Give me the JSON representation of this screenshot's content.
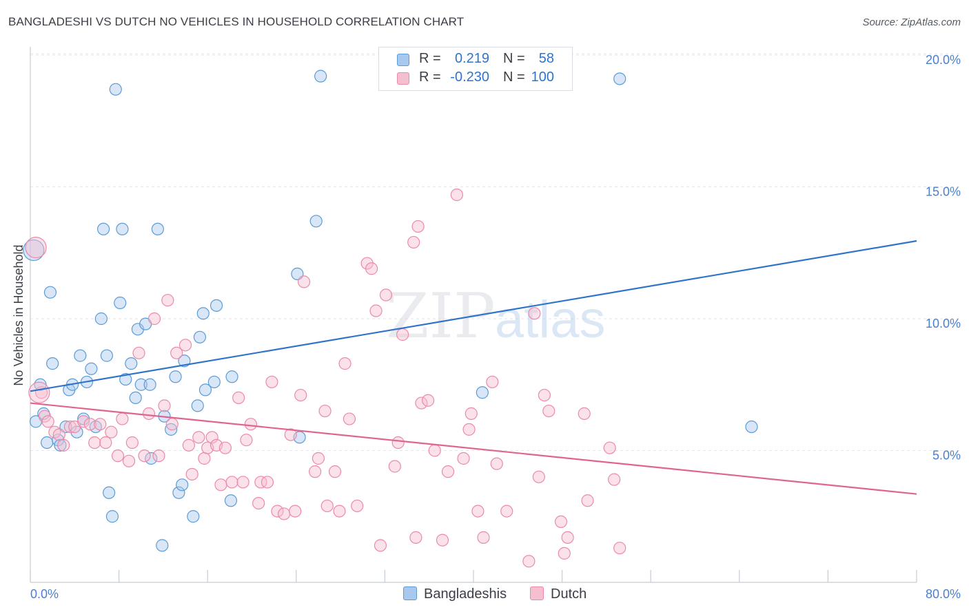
{
  "title": "BANGLADESHI VS DUTCH NO VEHICLES IN HOUSEHOLD CORRELATION CHART",
  "source": "Source: ZipAtlas.com",
  "watermark": {
    "zip": "ZIP",
    "atlas": "atlas"
  },
  "colors": {
    "blue": "#5b9bd5",
    "blue_fill": "#a9c8ee",
    "blue_line": "#2f74c9",
    "pink": "#ea8aa8",
    "pink_fill": "#f6bfd0",
    "pink_line": "#e0648f",
    "axis_text": "#4a7fcf",
    "grid": "#e3e6ea"
  },
  "legend": {
    "rows": [
      {
        "r_label": "R =",
        "r_value": "0.219",
        "n_label": "N =",
        "n_value": "58"
      },
      {
        "r_label": "R =",
        "r_value": "-0.230",
        "n_label": "N =",
        "n_value": "100"
      }
    ]
  },
  "bottom_legend": {
    "blue_label": "Bangladeshis",
    "pink_label": "Dutch"
  },
  "axis": {
    "x_min_label": "0.0%",
    "x_max_label": "80.0%",
    "ylabel": "No Vehicles in Household"
  },
  "chart_data": {
    "type": "scatter",
    "title": "BANGLADESHI VS DUTCH NO VEHICLES IN HOUSEHOLD CORRELATION CHART",
    "xlabel": "",
    "ylabel": "No Vehicles in Household",
    "xlim": [
      0,
      80
    ],
    "ylim": [
      0,
      20.5
    ],
    "y_ticks": [
      5,
      10,
      15,
      20
    ],
    "y_tick_labels": [
      "5.0%",
      "10.0%",
      "15.0%",
      "20.0%"
    ],
    "x_tick_labels": [
      "0.0%",
      "80.0%"
    ],
    "grid": true,
    "legend_position": "top-center",
    "series": [
      {
        "name": "Bangladeshis",
        "r": 0.219,
        "n": 58,
        "trend": {
          "x": [
            0,
            80
          ],
          "y": [
            7.25,
            12.95
          ]
        },
        "points": [
          [
            0.3,
            12.6
          ],
          [
            0.5,
            6.1
          ],
          [
            0.9,
            7.5
          ],
          [
            1.2,
            6.4
          ],
          [
            1.5,
            5.3
          ],
          [
            1.8,
            11.0
          ],
          [
            2.0,
            8.3
          ],
          [
            2.5,
            5.4
          ],
          [
            2.7,
            5.2
          ],
          [
            3.2,
            5.9
          ],
          [
            3.5,
            7.3
          ],
          [
            3.8,
            7.5
          ],
          [
            4.2,
            5.7
          ],
          [
            4.5,
            8.6
          ],
          [
            4.8,
            6.2
          ],
          [
            5.1,
            7.6
          ],
          [
            5.5,
            8.1
          ],
          [
            5.9,
            5.9
          ],
          [
            6.4,
            10.0
          ],
          [
            6.6,
            13.4
          ],
          [
            6.9,
            8.6
          ],
          [
            7.1,
            3.4
          ],
          [
            7.4,
            2.5
          ],
          [
            7.7,
            18.7
          ],
          [
            8.1,
            10.6
          ],
          [
            8.3,
            13.4
          ],
          [
            8.6,
            7.7
          ],
          [
            9.1,
            8.3
          ],
          [
            9.5,
            7.0
          ],
          [
            9.7,
            9.6
          ],
          [
            10.0,
            7.5
          ],
          [
            10.4,
            9.8
          ],
          [
            10.8,
            7.5
          ],
          [
            10.9,
            4.7
          ],
          [
            11.5,
            13.4
          ],
          [
            11.9,
            1.4
          ],
          [
            12.1,
            6.3
          ],
          [
            12.7,
            5.8
          ],
          [
            13.1,
            7.8
          ],
          [
            13.4,
            3.4
          ],
          [
            13.7,
            3.7
          ],
          [
            13.9,
            8.4
          ],
          [
            14.7,
            2.5
          ],
          [
            15.1,
            6.7
          ],
          [
            15.3,
            9.3
          ],
          [
            15.6,
            10.2
          ],
          [
            15.8,
            7.3
          ],
          [
            16.6,
            7.6
          ],
          [
            16.8,
            10.5
          ],
          [
            18.1,
            3.1
          ],
          [
            18.2,
            7.8
          ],
          [
            24.1,
            11.7
          ],
          [
            24.3,
            5.5
          ],
          [
            25.8,
            13.7
          ],
          [
            26.2,
            19.2
          ],
          [
            40.8,
            7.2
          ],
          [
            53.2,
            19.1
          ],
          [
            65.1,
            5.9
          ]
        ]
      },
      {
        "name": "Dutch",
        "r": -0.23,
        "n": 100,
        "trend": {
          "x": [
            0,
            80
          ],
          "y": [
            6.8,
            3.35
          ]
        },
        "points": [
          [
            0.5,
            12.7
          ],
          [
            1.0,
            7.2
          ],
          [
            1.3,
            6.3
          ],
          [
            1.6,
            6.1
          ],
          [
            2.2,
            5.7
          ],
          [
            2.6,
            5.6
          ],
          [
            3.0,
            5.2
          ],
          [
            3.6,
            5.9
          ],
          [
            4.0,
            5.9
          ],
          [
            4.8,
            6.1
          ],
          [
            5.4,
            6.0
          ],
          [
            5.8,
            5.3
          ],
          [
            6.3,
            6.0
          ],
          [
            6.8,
            5.3
          ],
          [
            7.3,
            5.7
          ],
          [
            7.9,
            4.8
          ],
          [
            8.3,
            6.2
          ],
          [
            8.9,
            4.6
          ],
          [
            9.2,
            5.3
          ],
          [
            9.8,
            8.7
          ],
          [
            10.3,
            4.8
          ],
          [
            10.7,
            6.4
          ],
          [
            11.2,
            10.0
          ],
          [
            11.6,
            4.8
          ],
          [
            12.1,
            6.7
          ],
          [
            12.4,
            10.7
          ],
          [
            12.8,
            6.0
          ],
          [
            13.2,
            8.7
          ],
          [
            14.0,
            9.0
          ],
          [
            14.3,
            5.2
          ],
          [
            14.6,
            4.1
          ],
          [
            15.2,
            5.5
          ],
          [
            15.7,
            4.7
          ],
          [
            16.0,
            5.1
          ],
          [
            16.4,
            5.5
          ],
          [
            16.8,
            5.2
          ],
          [
            17.2,
            3.7
          ],
          [
            17.6,
            5.1
          ],
          [
            18.2,
            3.8
          ],
          [
            18.8,
            7.0
          ],
          [
            19.2,
            3.8
          ],
          [
            19.5,
            5.4
          ],
          [
            19.9,
            6.0
          ],
          [
            20.6,
            3.0
          ],
          [
            20.8,
            3.8
          ],
          [
            21.4,
            3.8
          ],
          [
            21.8,
            7.6
          ],
          [
            22.3,
            2.7
          ],
          [
            22.9,
            2.6
          ],
          [
            23.5,
            5.6
          ],
          [
            23.9,
            2.7
          ],
          [
            24.4,
            7.1
          ],
          [
            24.7,
            11.4
          ],
          [
            25.7,
            4.2
          ],
          [
            26.0,
            4.7
          ],
          [
            26.6,
            6.5
          ],
          [
            26.8,
            2.9
          ],
          [
            27.5,
            4.2
          ],
          [
            27.9,
            2.7
          ],
          [
            28.4,
            8.3
          ],
          [
            28.8,
            6.2
          ],
          [
            29.5,
            2.9
          ],
          [
            30.4,
            12.1
          ],
          [
            30.8,
            11.9
          ],
          [
            31.2,
            10.3
          ],
          [
            31.6,
            1.4
          ],
          [
            32.1,
            10.9
          ],
          [
            32.9,
            4.4
          ],
          [
            33.2,
            5.3
          ],
          [
            33.6,
            9.4
          ],
          [
            34.6,
            12.9
          ],
          [
            34.8,
            1.7
          ],
          [
            35.0,
            13.5
          ],
          [
            35.3,
            6.8
          ],
          [
            35.9,
            6.9
          ],
          [
            36.5,
            5.0
          ],
          [
            37.2,
            1.6
          ],
          [
            37.7,
            4.2
          ],
          [
            38.5,
            14.7
          ],
          [
            39.1,
            4.7
          ],
          [
            39.6,
            5.8
          ],
          [
            39.8,
            6.4
          ],
          [
            40.4,
            2.7
          ],
          [
            40.9,
            1.7
          ],
          [
            41.7,
            7.6
          ],
          [
            42.1,
            4.5
          ],
          [
            43.0,
            2.7
          ],
          [
            45.0,
            0.8
          ],
          [
            45.5,
            10.2
          ],
          [
            45.9,
            4.0
          ],
          [
            46.4,
            7.1
          ],
          [
            46.8,
            6.5
          ],
          [
            47.9,
            2.3
          ],
          [
            48.2,
            1.1
          ],
          [
            48.5,
            1.7
          ],
          [
            50.0,
            6.4
          ],
          [
            50.3,
            3.1
          ],
          [
            52.3,
            5.1
          ],
          [
            52.7,
            3.9
          ],
          [
            53.2,
            1.3
          ]
        ]
      }
    ]
  }
}
